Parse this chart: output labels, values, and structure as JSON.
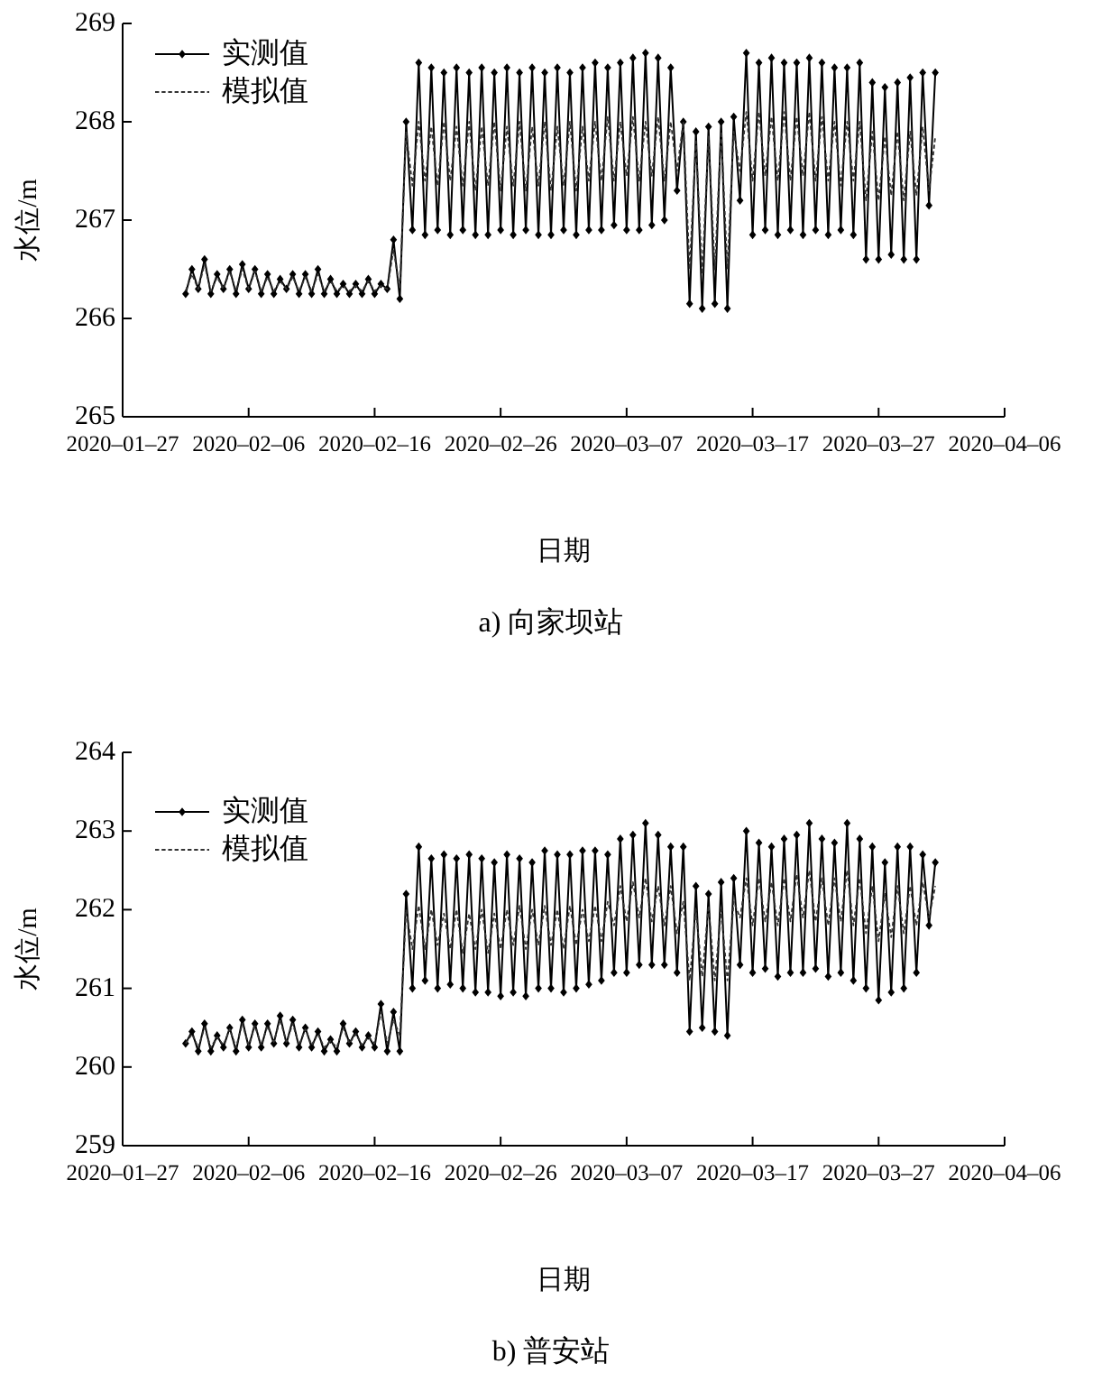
{
  "chart_data": [
    {
      "type": "line",
      "xlabel": "日期",
      "ylabel": "水位/m",
      "annotations": [
        "a) 向家坝站"
      ],
      "legend": "top left",
      "xlim": [
        "2020-01-27",
        "2020-04-06"
      ],
      "xticks": [
        {
          "value": "2020-01-27",
          "label": "2020–01–27"
        },
        {
          "value": "2020-02-06",
          "label": "2020–02–06"
        },
        {
          "value": "2020-02-16",
          "label": "2020–02–16"
        },
        {
          "value": "2020-02-26",
          "label": "2020–02–26"
        },
        {
          "value": "2020-03-07",
          "label": "2020–03–07"
        },
        {
          "value": "2020-03-17",
          "label": "2020–03–17"
        },
        {
          "value": "2020-03-27",
          "label": "2020–03–27"
        },
        {
          "value": "2020-04-06",
          "label": "2020–04–06"
        }
      ],
      "ylim": [
        265,
        269
      ],
      "yticks": [
        265,
        266,
        267,
        268,
        269
      ],
      "x": [
        "2020-02-01T00:00",
        "2020-02-01T12:00",
        "2020-02-02T00:00",
        "2020-02-02T12:00",
        "2020-02-03T00:00",
        "2020-02-03T12:00",
        "2020-02-04T00:00",
        "2020-02-04T12:00",
        "2020-02-05T00:00",
        "2020-02-05T12:00",
        "2020-02-06T00:00",
        "2020-02-06T12:00",
        "2020-02-07T00:00",
        "2020-02-07T12:00",
        "2020-02-08T00:00",
        "2020-02-08T12:00",
        "2020-02-09T00:00",
        "2020-02-09T12:00",
        "2020-02-10T00:00",
        "2020-02-10T12:00",
        "2020-02-11T00:00",
        "2020-02-11T12:00",
        "2020-02-12T00:00",
        "2020-02-12T12:00",
        "2020-02-13T00:00",
        "2020-02-13T12:00",
        "2020-02-14T00:00",
        "2020-02-14T12:00",
        "2020-02-15T00:00",
        "2020-02-15T12:00",
        "2020-02-16T00:00",
        "2020-02-16T12:00",
        "2020-02-17T00:00",
        "2020-02-17T12:00",
        "2020-02-18T00:00",
        "2020-02-18T12:00",
        "2020-02-19T00:00",
        "2020-02-19T12:00",
        "2020-02-20T00:00",
        "2020-02-20T12:00",
        "2020-02-21T00:00",
        "2020-02-21T12:00",
        "2020-02-22T00:00",
        "2020-02-22T12:00",
        "2020-02-23T00:00",
        "2020-02-23T12:00",
        "2020-02-24T00:00",
        "2020-02-24T12:00",
        "2020-02-25T00:00",
        "2020-02-25T12:00",
        "2020-02-26T00:00",
        "2020-02-26T12:00",
        "2020-02-27T00:00",
        "2020-02-27T12:00",
        "2020-02-28T00:00",
        "2020-02-28T12:00",
        "2020-02-29T00:00",
        "2020-02-29T12:00",
        "2020-03-01T00:00",
        "2020-03-01T12:00",
        "2020-03-02T00:00",
        "2020-03-02T12:00",
        "2020-03-03T00:00",
        "2020-03-03T12:00",
        "2020-03-04T00:00",
        "2020-03-04T12:00",
        "2020-03-05T00:00",
        "2020-03-05T12:00",
        "2020-03-06T00:00",
        "2020-03-06T12:00",
        "2020-03-07T00:00",
        "2020-03-07T12:00",
        "2020-03-08T00:00",
        "2020-03-08T12:00",
        "2020-03-09T00:00",
        "2020-03-09T12:00",
        "2020-03-10T00:00",
        "2020-03-10T12:00",
        "2020-03-11T00:00",
        "2020-03-11T12:00",
        "2020-03-12T00:00",
        "2020-03-12T12:00",
        "2020-03-13T00:00",
        "2020-03-13T12:00",
        "2020-03-14T00:00",
        "2020-03-14T12:00",
        "2020-03-15T00:00",
        "2020-03-15T12:00",
        "2020-03-16T00:00",
        "2020-03-16T12:00",
        "2020-03-17T00:00",
        "2020-03-17T12:00",
        "2020-03-18T00:00",
        "2020-03-18T12:00",
        "2020-03-19T00:00",
        "2020-03-19T12:00",
        "2020-03-20T00:00",
        "2020-03-20T12:00",
        "2020-03-21T00:00",
        "2020-03-21T12:00",
        "2020-03-22T00:00",
        "2020-03-22T12:00",
        "2020-03-23T00:00",
        "2020-03-23T12:00",
        "2020-03-24T00:00",
        "2020-03-24T12:00",
        "2020-03-25T00:00",
        "2020-03-25T12:00",
        "2020-03-26T00:00",
        "2020-03-26T12:00",
        "2020-03-27T00:00",
        "2020-03-27T12:00",
        "2020-03-28T00:00",
        "2020-03-28T12:00",
        "2020-03-29T00:00",
        "2020-03-29T12:00",
        "2020-03-30T00:00",
        "2020-03-30T12:00",
        "2020-03-31T00:00",
        "2020-03-31T12:00"
      ],
      "series": [
        {
          "name": "实测值",
          "color": "#000000",
          "marker": "diamond",
          "line_style": "solid",
          "values": [
            266.25,
            266.5,
            266.3,
            266.6,
            266.25,
            266.45,
            266.3,
            266.5,
            266.25,
            266.55,
            266.3,
            266.5,
            266.25,
            266.45,
            266.25,
            266.4,
            266.3,
            266.45,
            266.25,
            266.45,
            266.25,
            266.5,
            266.25,
            266.4,
            266.25,
            266.35,
            266.25,
            266.35,
            266.25,
            266.4,
            266.25,
            266.35,
            266.3,
            266.8,
            266.2,
            268.0,
            266.9,
            268.6,
            266.85,
            268.55,
            266.9,
            268.5,
            266.85,
            268.55,
            266.9,
            268.5,
            266.85,
            268.55,
            266.85,
            268.5,
            266.9,
            268.55,
            266.85,
            268.5,
            266.9,
            268.55,
            266.85,
            268.5,
            266.85,
            268.55,
            266.9,
            268.5,
            266.85,
            268.55,
            266.9,
            268.6,
            266.9,
            268.55,
            266.95,
            268.6,
            266.9,
            268.65,
            266.9,
            268.7,
            266.95,
            268.65,
            267.0,
            268.55,
            267.3,
            268.0,
            266.15,
            267.9,
            266.1,
            267.95,
            266.15,
            268.0,
            266.1,
            268.05,
            267.2,
            268.7,
            266.85,
            268.6,
            266.9,
            268.65,
            266.85,
            268.6,
            266.9,
            268.6,
            266.85,
            268.65,
            266.9,
            268.6,
            266.85,
            268.55,
            266.9,
            268.55,
            266.85,
            268.6,
            266.6,
            268.4,
            266.6,
            268.35,
            266.65,
            268.4,
            266.6,
            268.45,
            266.6,
            268.5,
            267.15,
            268.5
          ]
        },
        {
          "name": "模拟值",
          "color": "#333333",
          "marker": "none",
          "line_style": "dashed",
          "values": [
            266.28,
            266.45,
            266.3,
            266.55,
            266.28,
            266.42,
            266.3,
            266.48,
            266.28,
            266.5,
            266.3,
            266.48,
            266.28,
            266.42,
            266.28,
            266.38,
            266.3,
            266.42,
            266.28,
            266.42,
            266.28,
            266.45,
            266.28,
            266.38,
            266.28,
            266.33,
            266.28,
            266.33,
            266.28,
            266.38,
            266.28,
            266.33,
            266.3,
            266.7,
            266.3,
            267.9,
            267.35,
            268.0,
            267.4,
            267.95,
            267.35,
            268.0,
            267.4,
            267.95,
            267.35,
            268.0,
            267.3,
            267.95,
            267.35,
            268.0,
            267.3,
            267.95,
            267.35,
            268.0,
            267.3,
            267.95,
            267.35,
            268.0,
            267.3,
            267.95,
            267.35,
            268.0,
            267.3,
            267.95,
            267.4,
            268.0,
            267.4,
            268.05,
            267.4,
            268.0,
            267.45,
            268.05,
            267.4,
            268.0,
            267.45,
            268.05,
            267.4,
            268.0,
            267.5,
            268.0,
            266.5,
            267.8,
            266.45,
            267.85,
            266.5,
            267.9,
            266.5,
            267.9,
            267.5,
            268.1,
            267.4,
            268.1,
            267.45,
            268.05,
            267.4,
            268.1,
            267.4,
            268.05,
            267.45,
            268.1,
            267.4,
            268.05,
            267.4,
            268.0,
            267.35,
            268.0,
            267.4,
            268.0,
            267.2,
            267.9,
            267.2,
            267.85,
            267.25,
            267.9,
            267.2,
            267.9,
            267.25,
            267.95,
            267.3,
            267.85
          ]
        }
      ]
    },
    {
      "type": "line",
      "xlabel": "日期",
      "ylabel": "水位/m",
      "annotations": [
        "b) 普安站"
      ],
      "legend": "top left",
      "xlim": [
        "2020-01-27",
        "2020-04-06"
      ],
      "xticks": [
        {
          "value": "2020-01-27",
          "label": "2020–01–27"
        },
        {
          "value": "2020-02-06",
          "label": "2020–02–06"
        },
        {
          "value": "2020-02-16",
          "label": "2020–02–16"
        },
        {
          "value": "2020-02-26",
          "label": "2020–02–26"
        },
        {
          "value": "2020-03-07",
          "label": "2020–03–07"
        },
        {
          "value": "2020-03-17",
          "label": "2020–03–17"
        },
        {
          "value": "2020-03-27",
          "label": "2020–03–27"
        },
        {
          "value": "2020-04-06",
          "label": "2020–04–06"
        }
      ],
      "ylim": [
        259,
        264
      ],
      "yticks": [
        259,
        260,
        261,
        262,
        263,
        264
      ],
      "x": [
        "2020-02-01T00:00",
        "2020-02-01T12:00",
        "2020-02-02T00:00",
        "2020-02-02T12:00",
        "2020-02-03T00:00",
        "2020-02-03T12:00",
        "2020-02-04T00:00",
        "2020-02-04T12:00",
        "2020-02-05T00:00",
        "2020-02-05T12:00",
        "2020-02-06T00:00",
        "2020-02-06T12:00",
        "2020-02-07T00:00",
        "2020-02-07T12:00",
        "2020-02-08T00:00",
        "2020-02-08T12:00",
        "2020-02-09T00:00",
        "2020-02-09T12:00",
        "2020-02-10T00:00",
        "2020-02-10T12:00",
        "2020-02-11T00:00",
        "2020-02-11T12:00",
        "2020-02-12T00:00",
        "2020-02-12T12:00",
        "2020-02-13T00:00",
        "2020-02-13T12:00",
        "2020-02-14T00:00",
        "2020-02-14T12:00",
        "2020-02-15T00:00",
        "2020-02-15T12:00",
        "2020-02-16T00:00",
        "2020-02-16T12:00",
        "2020-02-17T00:00",
        "2020-02-17T12:00",
        "2020-02-18T00:00",
        "2020-02-18T12:00",
        "2020-02-19T00:00",
        "2020-02-19T12:00",
        "2020-02-20T00:00",
        "2020-02-20T12:00",
        "2020-02-21T00:00",
        "2020-02-21T12:00",
        "2020-02-22T00:00",
        "2020-02-22T12:00",
        "2020-02-23T00:00",
        "2020-02-23T12:00",
        "2020-02-24T00:00",
        "2020-02-24T12:00",
        "2020-02-25T00:00",
        "2020-02-25T12:00",
        "2020-02-26T00:00",
        "2020-02-26T12:00",
        "2020-02-27T00:00",
        "2020-02-27T12:00",
        "2020-02-28T00:00",
        "2020-02-28T12:00",
        "2020-02-29T00:00",
        "2020-02-29T12:00",
        "2020-03-01T00:00",
        "2020-03-01T12:00",
        "2020-03-02T00:00",
        "2020-03-02T12:00",
        "2020-03-03T00:00",
        "2020-03-03T12:00",
        "2020-03-04T00:00",
        "2020-03-04T12:00",
        "2020-03-05T00:00",
        "2020-03-05T12:00",
        "2020-03-06T00:00",
        "2020-03-06T12:00",
        "2020-03-07T00:00",
        "2020-03-07T12:00",
        "2020-03-08T00:00",
        "2020-03-08T12:00",
        "2020-03-09T00:00",
        "2020-03-09T12:00",
        "2020-03-10T00:00",
        "2020-03-10T12:00",
        "2020-03-11T00:00",
        "2020-03-11T12:00",
        "2020-03-12T00:00",
        "2020-03-12T12:00",
        "2020-03-13T00:00",
        "2020-03-13T12:00",
        "2020-03-14T00:00",
        "2020-03-14T12:00",
        "2020-03-15T00:00",
        "2020-03-15T12:00",
        "2020-03-16T00:00",
        "2020-03-16T12:00",
        "2020-03-17T00:00",
        "2020-03-17T12:00",
        "2020-03-18T00:00",
        "2020-03-18T12:00",
        "2020-03-19T00:00",
        "2020-03-19T12:00",
        "2020-03-20T00:00",
        "2020-03-20T12:00",
        "2020-03-21T00:00",
        "2020-03-21T12:00",
        "2020-03-22T00:00",
        "2020-03-22T12:00",
        "2020-03-23T00:00",
        "2020-03-23T12:00",
        "2020-03-24T00:00",
        "2020-03-24T12:00",
        "2020-03-25T00:00",
        "2020-03-25T12:00",
        "2020-03-26T00:00",
        "2020-03-26T12:00",
        "2020-03-27T00:00",
        "2020-03-27T12:00",
        "2020-03-28T00:00",
        "2020-03-28T12:00",
        "2020-03-29T00:00",
        "2020-03-29T12:00",
        "2020-03-30T00:00",
        "2020-03-30T12:00",
        "2020-03-31T00:00",
        "2020-03-31T12:00"
      ],
      "series": [
        {
          "name": "实测值",
          "color": "#000000",
          "marker": "diamond",
          "line_style": "solid",
          "values": [
            260.3,
            260.45,
            260.2,
            260.55,
            260.2,
            260.4,
            260.25,
            260.5,
            260.2,
            260.6,
            260.25,
            260.55,
            260.25,
            260.55,
            260.3,
            260.65,
            260.3,
            260.6,
            260.25,
            260.5,
            260.25,
            260.45,
            260.2,
            260.35,
            260.2,
            260.55,
            260.3,
            260.45,
            260.25,
            260.4,
            260.25,
            260.8,
            260.2,
            260.7,
            260.2,
            262.2,
            261.0,
            262.8,
            261.1,
            262.65,
            261.0,
            262.7,
            261.05,
            262.65,
            261.0,
            262.7,
            260.95,
            262.65,
            260.95,
            262.6,
            260.9,
            262.7,
            260.95,
            262.65,
            260.9,
            262.6,
            261.0,
            262.75,
            261.0,
            262.7,
            260.95,
            262.7,
            261.0,
            262.75,
            261.05,
            262.75,
            261.1,
            262.7,
            261.2,
            262.9,
            261.2,
            262.95,
            261.3,
            263.1,
            261.3,
            262.95,
            261.3,
            262.8,
            261.2,
            262.8,
            260.45,
            262.3,
            260.5,
            262.2,
            260.45,
            262.35,
            260.4,
            262.4,
            261.3,
            263.0,
            261.2,
            262.85,
            261.25,
            262.8,
            261.15,
            262.9,
            261.2,
            262.95,
            261.2,
            263.1,
            261.25,
            262.9,
            261.15,
            262.85,
            261.2,
            263.1,
            261.1,
            262.9,
            261.0,
            262.8,
            260.85,
            262.6,
            260.95,
            262.8,
            261.0,
            262.8,
            261.2,
            262.7,
            261.8,
            262.6
          ]
        },
        {
          "name": "模拟值",
          "color": "#333333",
          "marker": "none",
          "line_style": "dashed",
          "values": [
            260.3,
            260.42,
            260.25,
            260.5,
            260.25,
            260.38,
            260.28,
            260.48,
            260.25,
            260.55,
            260.28,
            260.52,
            260.28,
            260.52,
            260.32,
            260.6,
            260.32,
            260.55,
            260.28,
            260.48,
            260.28,
            260.42,
            260.25,
            260.33,
            260.25,
            260.5,
            260.3,
            260.42,
            260.28,
            260.38,
            260.3,
            260.7,
            260.3,
            260.6,
            260.4,
            262.0,
            261.5,
            262.05,
            261.5,
            262.0,
            261.55,
            261.95,
            261.5,
            262.0,
            261.45,
            261.95,
            261.5,
            262.0,
            261.45,
            261.95,
            261.5,
            262.0,
            261.55,
            262.05,
            261.5,
            262.0,
            261.55,
            262.05,
            261.55,
            262.0,
            261.5,
            262.05,
            261.55,
            262.0,
            261.6,
            262.05,
            261.6,
            262.1,
            261.8,
            262.3,
            261.85,
            262.35,
            261.9,
            262.4,
            261.85,
            262.3,
            261.8,
            262.3,
            261.7,
            262.1,
            261.1,
            262.0,
            261.15,
            262.05,
            261.1,
            262.0,
            261.1,
            262.1,
            261.9,
            262.4,
            261.8,
            262.4,
            261.85,
            262.35,
            261.8,
            262.4,
            261.85,
            262.45,
            261.9,
            262.5,
            261.85,
            262.4,
            261.8,
            262.4,
            261.85,
            262.5,
            261.8,
            262.4,
            261.7,
            262.3,
            261.6,
            262.2,
            261.65,
            262.3,
            261.7,
            262.3,
            261.8,
            262.35,
            261.9,
            262.3
          ]
        }
      ]
    }
  ]
}
